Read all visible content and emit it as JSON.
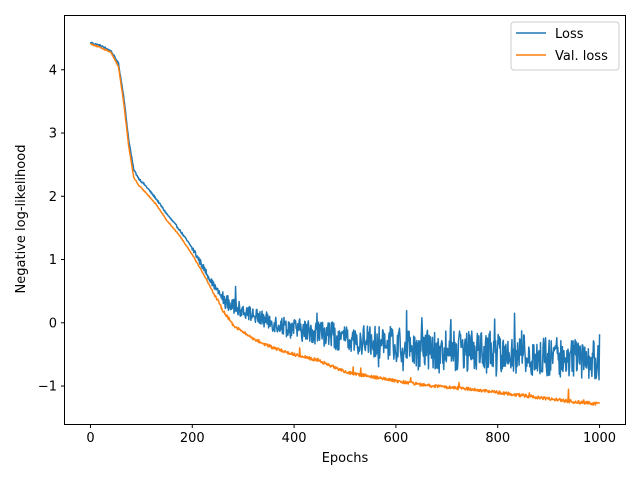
{
  "chart_data": {
    "type": "line",
    "title": "",
    "xlabel": "Epochs",
    "ylabel": "Negative log-likelihood",
    "xlim": [
      -50,
      1050
    ],
    "ylim": [
      -1.6,
      4.85
    ],
    "xticks": [
      0,
      200,
      400,
      600,
      800,
      1000
    ],
    "xtick_labels": [
      "0",
      "200",
      "400",
      "600",
      "800",
      "1000"
    ],
    "yticks": [
      -1,
      0,
      1,
      2,
      3,
      4
    ],
    "ytick_labels": [
      "−1",
      "0",
      "1",
      "2",
      "3",
      "4"
    ],
    "grid": false,
    "legend_position": "top-right",
    "series": [
      {
        "name": "Loss",
        "color": "#1f77b4",
        "noise": "high",
        "x": [
          0,
          20,
          40,
          55,
          65,
          75,
          85,
          95,
          110,
          130,
          150,
          175,
          200,
          220,
          240,
          260,
          280,
          300,
          320,
          340,
          360,
          380,
          400,
          450,
          500,
          550,
          600,
          650,
          700,
          750,
          800,
          850,
          900,
          950,
          1000
        ],
        "y": [
          4.43,
          4.38,
          4.3,
          4.1,
          3.6,
          2.9,
          2.42,
          2.28,
          2.15,
          1.95,
          1.72,
          1.47,
          1.18,
          0.9,
          0.62,
          0.38,
          0.25,
          0.2,
          0.12,
          0.05,
          0.0,
          -0.05,
          -0.1,
          -0.15,
          -0.25,
          -0.3,
          -0.35,
          -0.4,
          -0.45,
          -0.45,
          -0.5,
          -0.5,
          -0.55,
          -0.55,
          -0.6
        ]
      },
      {
        "name": "Val. loss",
        "color": "#ff7f0e",
        "noise": "low",
        "x": [
          0,
          20,
          40,
          55,
          65,
          75,
          85,
          95,
          110,
          130,
          150,
          175,
          200,
          220,
          240,
          260,
          280,
          300,
          320,
          340,
          360,
          380,
          400,
          450,
          500,
          550,
          600,
          650,
          700,
          750,
          800,
          850,
          900,
          950,
          1000
        ],
        "y": [
          4.41,
          4.35,
          4.28,
          4.05,
          3.5,
          2.8,
          2.3,
          2.17,
          2.05,
          1.86,
          1.62,
          1.38,
          1.08,
          0.8,
          0.5,
          0.2,
          -0.03,
          -0.15,
          -0.25,
          -0.33,
          -0.4,
          -0.45,
          -0.5,
          -0.6,
          -0.78,
          -0.85,
          -0.92,
          -0.98,
          -1.02,
          -1.05,
          -1.1,
          -1.15,
          -1.2,
          -1.25,
          -1.28
        ]
      }
    ]
  }
}
